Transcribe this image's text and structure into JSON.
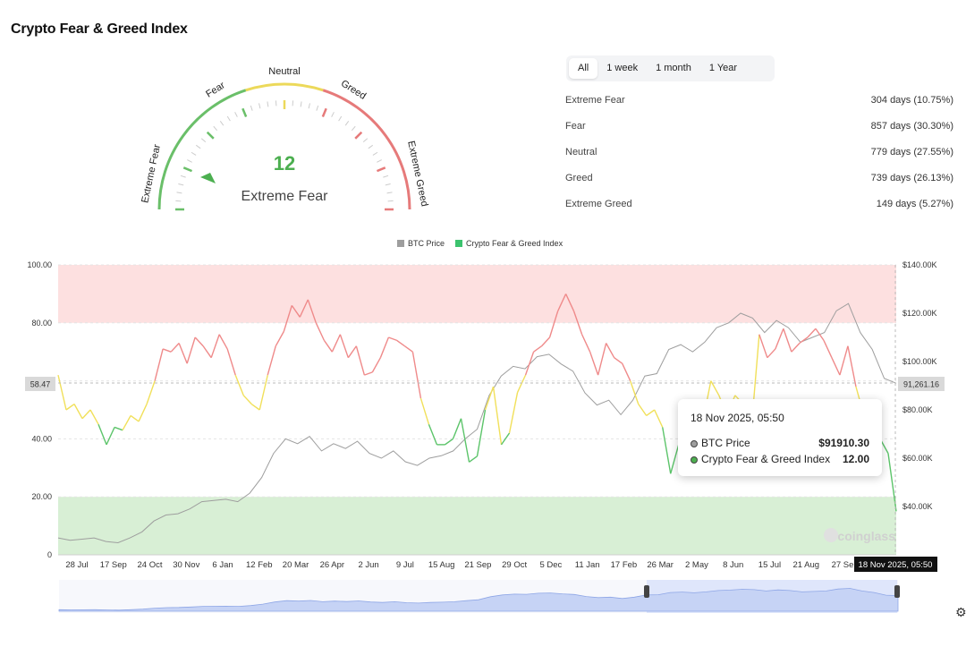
{
  "page_title": "Crypto Fear & Greed Index",
  "gauge": {
    "value": "12",
    "value_num": 12,
    "classification": "Extreme Fear",
    "labels": [
      "Extreme Fear",
      "Fear",
      "Neutral",
      "Greed",
      "Extreme Greed"
    ],
    "colors": {
      "fear": "#6abf69",
      "neutral": "#ecd95a",
      "greed": "#e67a7a",
      "value_text": "#4caf50"
    }
  },
  "range_tabs": [
    {
      "label": "All",
      "active": true
    },
    {
      "label": "1 week",
      "active": false
    },
    {
      "label": "1 month",
      "active": false
    },
    {
      "label": "1 Year",
      "active": false
    }
  ],
  "stats": [
    {
      "label": "Extreme Fear",
      "value": "304 days (10.75%)"
    },
    {
      "label": "Fear",
      "value": "857 days (30.30%)"
    },
    {
      "label": "Neutral",
      "value": "779 days (27.55%)"
    },
    {
      "label": "Greed",
      "value": "739 days (26.13%)"
    },
    {
      "label": "Extreme Greed",
      "value": "149 days (5.27%)"
    }
  ],
  "legend": [
    {
      "name": "BTC Price",
      "color": "#9e9e9e"
    },
    {
      "name": "Crypto Fear & Greed Index",
      "color": "#3cc36e"
    }
  ],
  "crosshair": {
    "left_value": "58.47",
    "right_value": "91,261.16",
    "date_label": "18 Nov 2025, 05:50"
  },
  "tooltip": {
    "title": "18 Nov 2025, 05:50",
    "rows": [
      {
        "name": "BTC Price",
        "value": "$91910.30",
        "color": "#9e9e9e"
      },
      {
        "name": "Crypto Fear & Greed Index",
        "value": "12.00",
        "color": "#4caf50"
      }
    ]
  },
  "watermark": "coinglass",
  "chart_data": {
    "type": "line",
    "x_ticks": [
      "28 Jul",
      "17 Sep",
      "24 Oct",
      "30 Nov",
      "6 Jan",
      "12 Feb",
      "20 Mar",
      "26 Apr",
      "2 Jun",
      "9 Jul",
      "15 Aug",
      "21 Sep",
      "29 Oct",
      "5 Dec",
      "11 Jan",
      "17 Feb",
      "26 Mar",
      "2 May",
      "8 Jun",
      "15 Jul",
      "21 Aug",
      "27 Se"
    ],
    "y_left_ticks": [
      "100.00",
      "80.00",
      "",
      "40.00",
      "20.00",
      "0"
    ],
    "y_right_ticks": [
      "$140.00K",
      "$120.00K",
      "$100.00K",
      "$80.00K",
      "$60.00K",
      "$40.00K"
    ],
    "y_left_range": [
      0,
      100
    ],
    "y_right_range": [
      20000,
      140000
    ],
    "bands": {
      "extreme_greed_from": 80,
      "extreme_fear_to": 20
    },
    "series": [
      {
        "name": "Crypto Fear & Greed Index",
        "color": "#3cc36e",
        "values": [
          62,
          50,
          52,
          47,
          50,
          45,
          38,
          44,
          43,
          48,
          46,
          52,
          60,
          71,
          70,
          73,
          66,
          75,
          72,
          68,
          76,
          71,
          62,
          55,
          52,
          50,
          62,
          72,
          77,
          86,
          82,
          88,
          80,
          74,
          70,
          76,
          68,
          72,
          62,
          63,
          68,
          75,
          74,
          72,
          70,
          54,
          45,
          38,
          38,
          40,
          47,
          32,
          34,
          50,
          58,
          38,
          42,
          56,
          62,
          70,
          72,
          75,
          84,
          90,
          84,
          76,
          70,
          62,
          73,
          68,
          66,
          60,
          52,
          48,
          50,
          44,
          28,
          38,
          30,
          43,
          46,
          60,
          55,
          48,
          55,
          52,
          43,
          76,
          68,
          71,
          78,
          70,
          73,
          75,
          78,
          74,
          68,
          62,
          72,
          58,
          48,
          50,
          40,
          35,
          15
        ]
      },
      {
        "name": "BTC Price",
        "color": "#9e9e9e",
        "values": [
          27000,
          26000,
          26500,
          27000,
          25500,
          25000,
          27000,
          29500,
          34000,
          36500,
          37000,
          39000,
          42000,
          42500,
          43000,
          42000,
          45500,
          52000,
          62000,
          68000,
          66000,
          69000,
          63000,
          66000,
          64000,
          67000,
          62000,
          60000,
          63000,
          58500,
          57000,
          60000,
          61000,
          63000,
          68000,
          72000,
          86000,
          94000,
          98000,
          97000,
          102000,
          103000,
          99000,
          96000,
          87000,
          82000,
          84000,
          78000,
          84000,
          94000,
          95000,
          105000,
          107000,
          104000,
          108000,
          114000,
          116000,
          120000,
          118000,
          112000,
          117000,
          114000,
          108000,
          110000,
          112000,
          121000,
          124000,
          112000,
          105000,
          93000,
          91000
        ]
      }
    ]
  }
}
